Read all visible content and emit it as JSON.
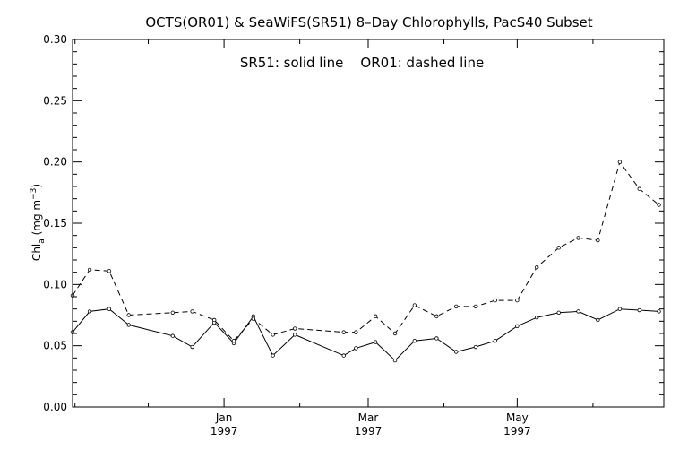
{
  "chart_data": {
    "type": "line",
    "title": "OCTS(OR01) & SeaWiFS(SR51) 8–Day Chlorophylls, PacS40 Subset",
    "annotation": "SR51: solid line    OR01: dashed line",
    "ylabel": {
      "main": "Chl",
      "sub": "a",
      "units": " (mg m",
      "sup": "−3",
      "close": ")"
    },
    "xlabel": "",
    "ylim": [
      0.0,
      0.3
    ],
    "yticks": [
      {
        "value": 0.0,
        "label": "0.00"
      },
      {
        "value": 0.05,
        "label": "0.05"
      },
      {
        "value": 0.1,
        "label": "0.10"
      },
      {
        "value": 0.15,
        "label": "0.15"
      },
      {
        "value": 0.2,
        "label": "0.20"
      },
      {
        "value": 0.25,
        "label": "0.25"
      },
      {
        "value": 0.3,
        "label": "0.30"
      }
    ],
    "xlim": [
      "1996-10-31",
      "1997-06-30"
    ],
    "xticks": [
      {
        "date": "1997-01-01",
        "month": "Jan",
        "year": "1997"
      },
      {
        "date": "1997-03-01",
        "month": "Mar",
        "year": "1997"
      },
      {
        "date": "1997-05-01",
        "month": "May",
        "year": "1997"
      }
    ],
    "grid": false,
    "legend": "top-center",
    "series": [
      {
        "name": "SR51",
        "style": "solid",
        "points": [
          {
            "x": "1996-10-31",
            "y": 0.061
          },
          {
            "x": "1996-11-07",
            "y": 0.078
          },
          {
            "x": "1996-11-15",
            "y": 0.08
          },
          {
            "x": "1996-11-23",
            "y": 0.067
          },
          {
            "x": "1996-12-11",
            "y": 0.058
          },
          {
            "x": "1996-12-19",
            "y": 0.049
          },
          {
            "x": "1996-12-28",
            "y": 0.069
          },
          {
            "x": "1997-01-05",
            "y": 0.052
          },
          {
            "x": "1997-01-13",
            "y": 0.074
          },
          {
            "x": "1997-01-21",
            "y": 0.042
          },
          {
            "x": "1997-01-30",
            "y": 0.059
          },
          {
            "x": "1997-02-19",
            "y": 0.042
          },
          {
            "x": "1997-02-24",
            "y": 0.048
          },
          {
            "x": "1997-03-04",
            "y": 0.053
          },
          {
            "x": "1997-03-12",
            "y": 0.038
          },
          {
            "x": "1997-03-20",
            "y": 0.054
          },
          {
            "x": "1997-03-29",
            "y": 0.056
          },
          {
            "x": "1997-04-06",
            "y": 0.045
          },
          {
            "x": "1997-04-14",
            "y": 0.049
          },
          {
            "x": "1997-04-22",
            "y": 0.054
          },
          {
            "x": "1997-05-01",
            "y": 0.066
          },
          {
            "x": "1997-05-09",
            "y": 0.073
          },
          {
            "x": "1997-05-18",
            "y": 0.077
          },
          {
            "x": "1997-05-26",
            "y": 0.078
          },
          {
            "x": "1997-06-03",
            "y": 0.071
          },
          {
            "x": "1997-06-12",
            "y": 0.08
          },
          {
            "x": "1997-06-20",
            "y": 0.079
          },
          {
            "x": "1997-06-28",
            "y": 0.078
          }
        ]
      },
      {
        "name": "OR01",
        "style": "dashed",
        "points": [
          {
            "x": "1996-10-31",
            "y": 0.091
          },
          {
            "x": "1996-11-07",
            "y": 0.112
          },
          {
            "x": "1996-11-15",
            "y": 0.111
          },
          {
            "x": "1996-11-23",
            "y": 0.075
          },
          {
            "x": "1996-12-11",
            "y": 0.077
          },
          {
            "x": "1996-12-19",
            "y": 0.078
          },
          {
            "x": "1996-12-28",
            "y": 0.071
          },
          {
            "x": "1997-01-05",
            "y": 0.054
          },
          {
            "x": "1997-01-13",
            "y": 0.072
          },
          {
            "x": "1997-01-21",
            "y": 0.059
          },
          {
            "x": "1997-01-30",
            "y": 0.064
          },
          {
            "x": "1997-02-19",
            "y": 0.061
          },
          {
            "x": "1997-02-24",
            "y": 0.061
          },
          {
            "x": "1997-03-04",
            "y": 0.074
          },
          {
            "x": "1997-03-12",
            "y": 0.06
          },
          {
            "x": "1997-03-20",
            "y": 0.083
          },
          {
            "x": "1997-03-29",
            "y": 0.074
          },
          {
            "x": "1997-04-06",
            "y": 0.082
          },
          {
            "x": "1997-04-14",
            "y": 0.082
          },
          {
            "x": "1997-04-22",
            "y": 0.087
          },
          {
            "x": "1997-05-01",
            "y": 0.087
          },
          {
            "x": "1997-05-09",
            "y": 0.114
          },
          {
            "x": "1997-05-18",
            "y": 0.13
          },
          {
            "x": "1997-05-26",
            "y": 0.138
          },
          {
            "x": "1997-06-03",
            "y": 0.136
          },
          {
            "x": "1997-06-12",
            "y": 0.2
          },
          {
            "x": "1997-06-20",
            "y": 0.178
          },
          {
            "x": "1997-06-28",
            "y": 0.165
          }
        ]
      }
    ]
  }
}
